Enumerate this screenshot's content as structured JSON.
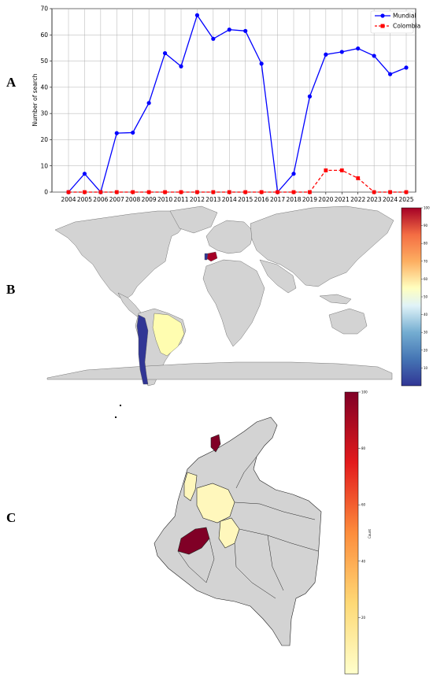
{
  "panels": {
    "a": {
      "letter": "A"
    },
    "b": {
      "letter": "B"
    },
    "c": {
      "letter": "C"
    }
  },
  "chart_data": [
    {
      "type": "line",
      "ylabel": "Number of search",
      "ylim": [
        0,
        70
      ],
      "yticks": [
        0,
        10,
        20,
        30,
        40,
        50,
        60,
        70
      ],
      "grid": true,
      "legend_position": "top-right",
      "x": [
        "2004",
        "2005",
        "2006",
        "2007",
        "2008",
        "2009",
        "2010",
        "2011",
        "2012",
        "2013",
        "2014",
        "2015",
        "2016",
        "2017",
        "2018",
        "2019",
        "2020",
        "2021",
        "2022",
        "2023",
        "2024",
        "2025"
      ],
      "series": [
        {
          "name": "Mundial",
          "color": "#0000ff",
          "marker": "circle",
          "linestyle": "solid",
          "values": [
            0,
            7,
            0,
            22.5,
            22.7,
            34,
            53,
            48,
            67.5,
            58.5,
            62,
            61.5,
            49,
            0,
            7,
            36.5,
            52.5,
            53.5,
            54.8,
            52,
            45,
            47.5
          ]
        },
        {
          "name": "Colombia",
          "color": "#ff0000",
          "marker": "square",
          "linestyle": "dashed",
          "values": [
            0,
            0,
            0,
            0,
            0,
            0,
            0,
            0,
            0,
            0,
            0,
            0,
            0,
            0,
            0,
            0,
            8.3,
            8.3,
            5.3,
            0,
            0,
            0
          ]
        }
      ]
    },
    {
      "type": "heatmap",
      "subtype": "world choropleth",
      "colorscale": "RdYlBu_r",
      "range": [
        0,
        100
      ],
      "colorbar_ticks": [
        10,
        20,
        30,
        40,
        50,
        60,
        70,
        80,
        90,
        100
      ],
      "highlighted": {
        "spain": 100,
        "brazil": 60,
        "chile_peru": 10
      }
    },
    {
      "type": "heatmap",
      "subtype": "colombia departments choropleth",
      "colorscale": "YlOrRd",
      "range": [
        0,
        100
      ],
      "colorbar_label": "Count",
      "colorbar_ticks": [
        20,
        40,
        60,
        80,
        100
      ],
      "highlighted": {
        "valle_del_cauca": 100,
        "atlantico": 100,
        "antioquia": 20,
        "choco": 20,
        "caldas": 20,
        "tolima": 20
      }
    }
  ]
}
